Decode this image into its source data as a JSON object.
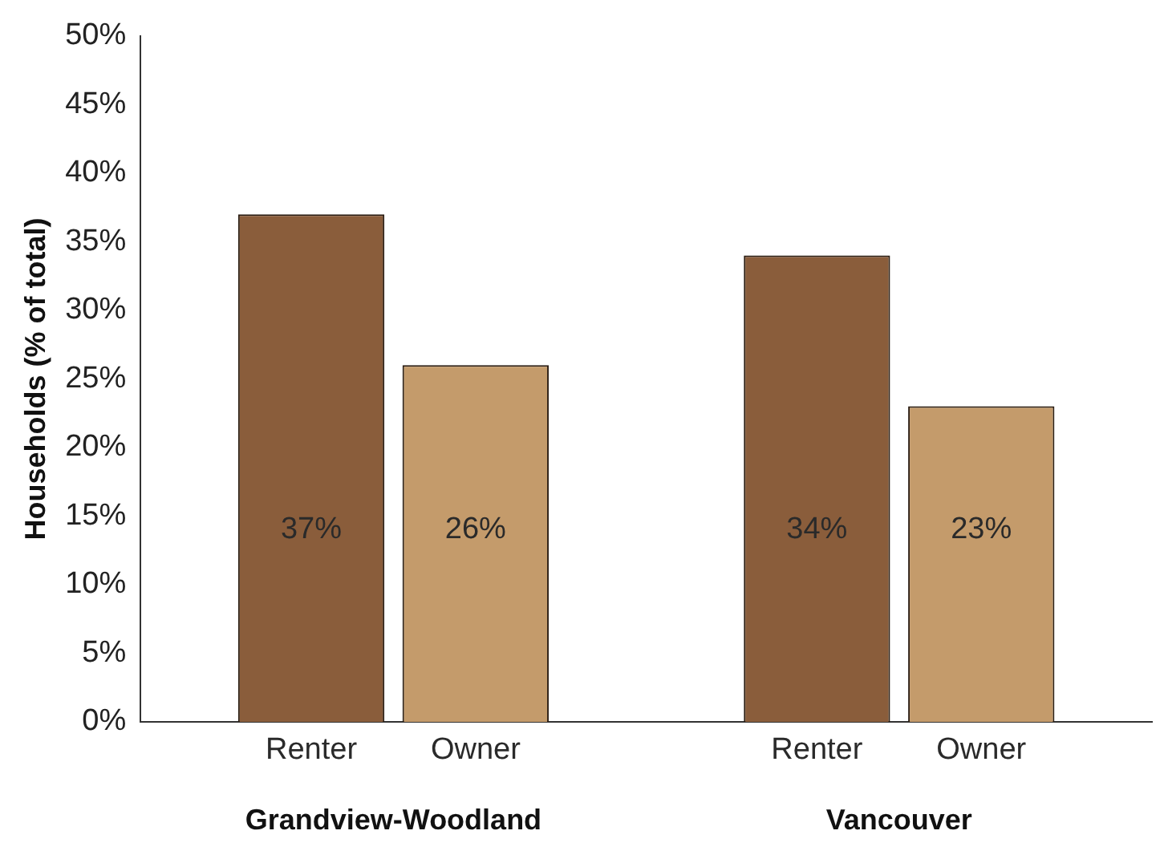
{
  "chart_data": {
    "type": "bar",
    "ylabel": "Households (% of total)",
    "categories": [
      "Grandview-Woodland",
      "Vancouver"
    ],
    "series": [
      {
        "name": "Renter",
        "color": "#8a5d3b",
        "values": [
          37,
          34
        ],
        "value_labels": [
          "37%",
          "34%"
        ]
      },
      {
        "name": "Owner",
        "color": "#c49b6b",
        "values": [
          26,
          23
        ],
        "value_labels": [
          "26%",
          "23%"
        ]
      }
    ],
    "ylim": [
      0,
      50
    ],
    "yticks": [
      {
        "value": 0,
        "label": "0%"
      },
      {
        "value": 5,
        "label": "5%"
      },
      {
        "value": 10,
        "label": "10%"
      },
      {
        "value": 15,
        "label": "15%"
      },
      {
        "value": 20,
        "label": "20%"
      },
      {
        "value": 25,
        "label": "25%"
      },
      {
        "value": 30,
        "label": "30%"
      },
      {
        "value": 35,
        "label": "35%"
      },
      {
        "value": 40,
        "label": "40%"
      },
      {
        "value": 45,
        "label": "45%"
      },
      {
        "value": 50,
        "label": "50%"
      }
    ],
    "grid": false,
    "legend": false
  }
}
